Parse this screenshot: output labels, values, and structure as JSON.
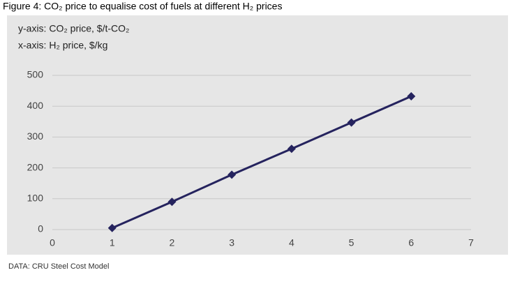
{
  "chart_data": {
    "type": "line",
    "title": "Figure 4: CO₂ price to equalise cost of fuels at different H₂ prices",
    "y_axis_label": "y-axis: CO₂ price, $/t-CO₂",
    "x_axis_label": "x-axis: H₂ price, $/kg",
    "source": "DATA: CRU Steel Cost Model",
    "x": [
      1,
      2,
      3,
      4,
      5,
      6
    ],
    "values": [
      5,
      90,
      178,
      262,
      347,
      432
    ],
    "color": "#25235e",
    "xlim": [
      0,
      7
    ],
    "xticks": [
      0,
      1,
      2,
      3,
      4,
      5,
      6,
      7
    ],
    "ylim": [
      0,
      500
    ],
    "yticks": [
      0,
      100,
      200,
      300,
      400,
      500
    ],
    "grid": true
  }
}
